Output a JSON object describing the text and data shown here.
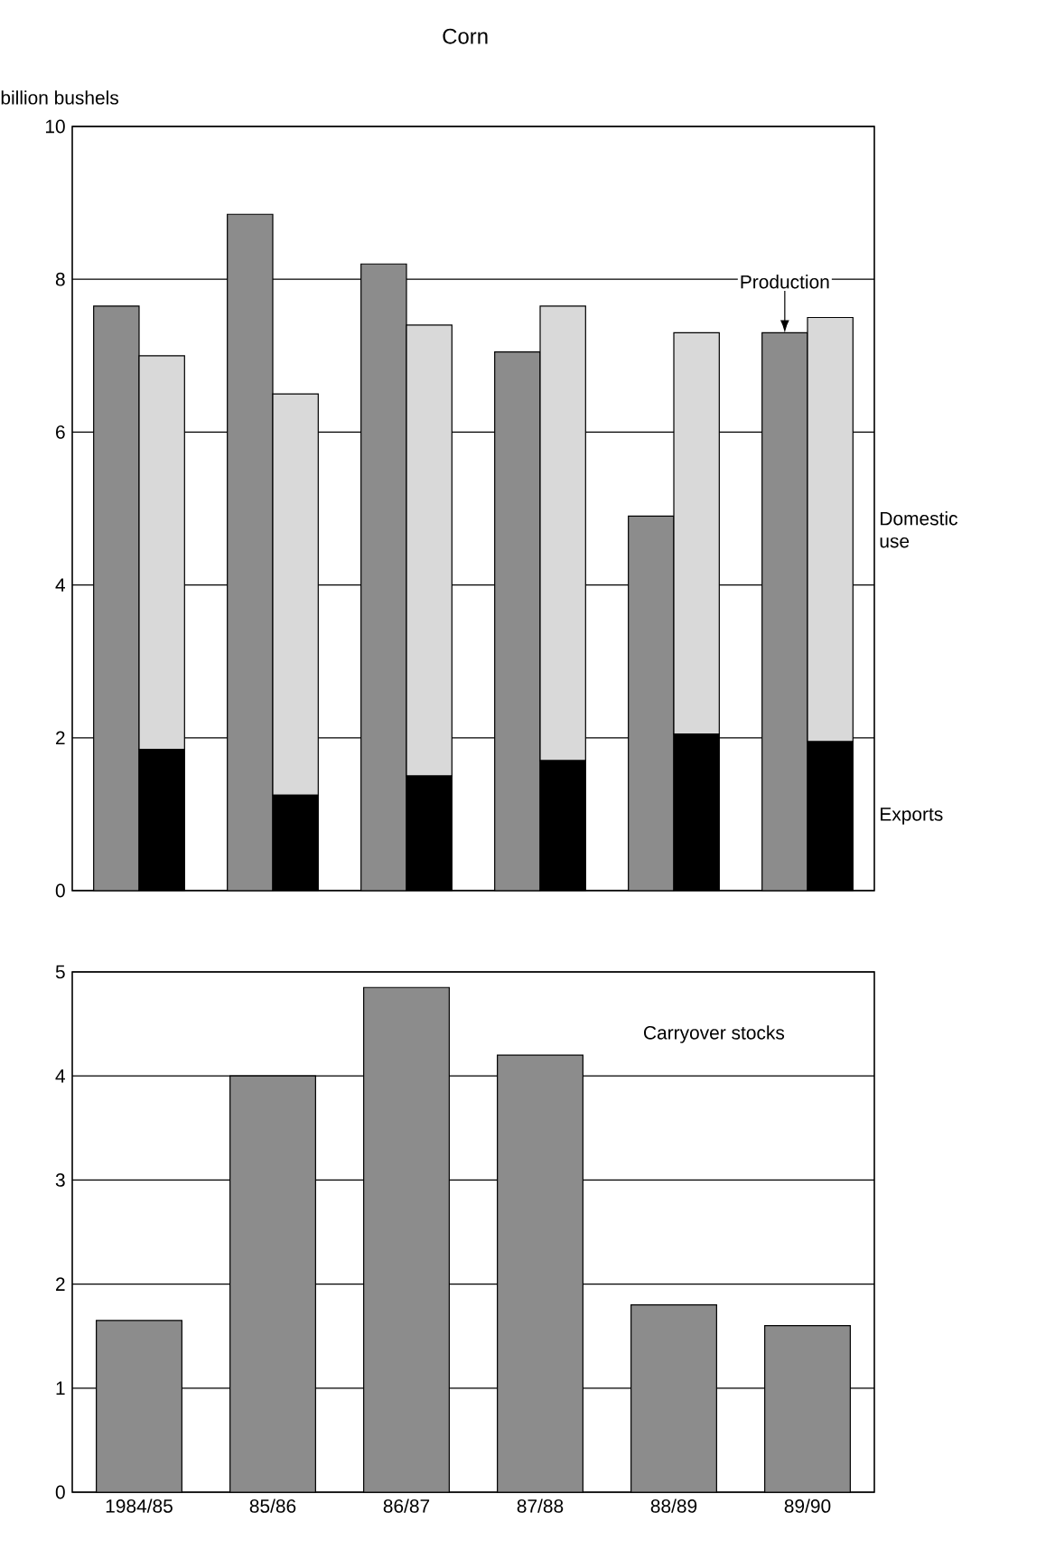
{
  "chart_data": [
    {
      "type": "bar",
      "title": "Corn",
      "ylabel": "billion bushels",
      "categories": [
        null,
        null,
        null,
        null,
        null,
        null
      ],
      "ylim": [
        0,
        10
      ],
      "yticks": [
        0,
        2,
        4,
        6,
        8,
        10
      ],
      "grid": "y",
      "tick_labels": "y",
      "series": [
        {
          "name": "Production",
          "color": "#8c8c8c",
          "values": [
            7.65,
            8.85,
            8.2,
            7.05,
            4.9,
            7.3
          ]
        },
        {
          "name": "Domestic use",
          "color": "#d9d9d9",
          "values": [
            5.15,
            5.25,
            5.9,
            5.95,
            5.25,
            5.55
          ],
          "base": [
            1.85,
            1.25,
            1.5,
            1.7,
            2.05,
            1.95
          ]
        },
        {
          "name": "Exports",
          "color": "#000000",
          "values": [
            1.85,
            1.25,
            1.5,
            1.7,
            2.05,
            1.95
          ]
        }
      ]
    },
    {
      "type": "bar",
      "categories": [
        "1984/85",
        "85/86",
        "86/87",
        "87/88",
        "88/89",
        "89/90"
      ],
      "ylim": [
        0,
        5
      ],
      "yticks": [
        0,
        1,
        2,
        3,
        4,
        5
      ],
      "grid": "y",
      "series": [
        {
          "name": "Carryover stocks",
          "color": "#8c8c8c",
          "values": [
            1.65,
            4.0,
            4.85,
            4.2,
            1.8,
            1.6
          ]
        }
      ]
    }
  ]
}
